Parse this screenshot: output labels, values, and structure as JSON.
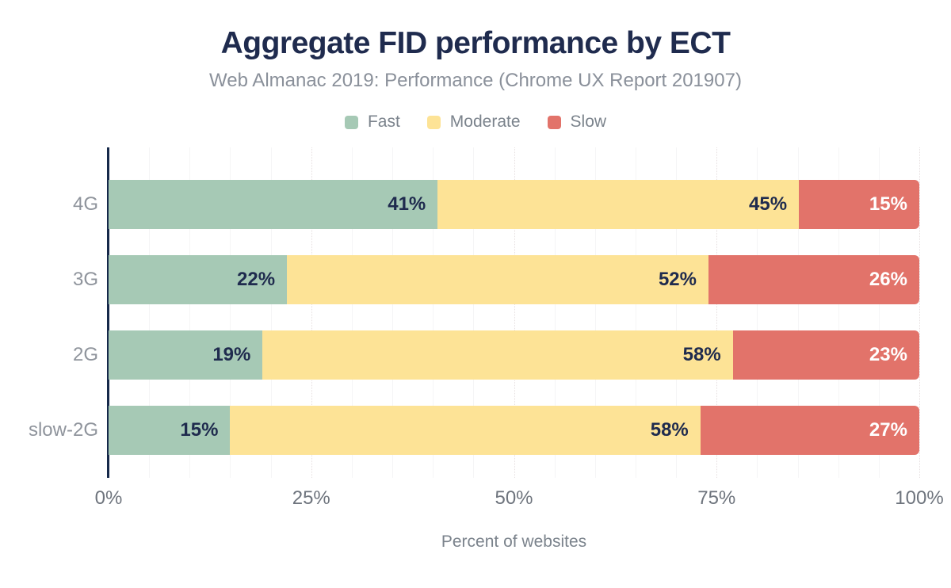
{
  "title": "Aggregate FID performance by ECT",
  "subtitle": "Web Almanac 2019: Performance (Chrome UX Report 201907)",
  "xlabel": "Percent of websites",
  "legend": [
    {
      "label": "Fast",
      "color": "#a6c9b5"
    },
    {
      "label": "Moderate",
      "color": "#fde396"
    },
    {
      "label": "Slow",
      "color": "#e2736a"
    }
  ],
  "colors": {
    "navy": "#1f2b4e",
    "axis": "#16294a",
    "subtitle_gray": "#8a909a",
    "legend_gray": "#7b838c",
    "category_gray": "#8f949c",
    "tick_gray": "#6e747d",
    "grid_minor": "#f5f5f6",
    "grid_major": "#e6dfe0",
    "label_light": "#ffffff"
  },
  "chart_data": {
    "type": "bar",
    "orientation": "horizontal",
    "stacked": true,
    "title": "Aggregate FID performance by ECT",
    "subtitle": "Web Almanac 2019: Performance (Chrome UX Report 201907)",
    "xlabel": "Percent of websites",
    "ylabel": "",
    "categories": [
      "4G",
      "3G",
      "2G",
      "slow-2G"
    ],
    "series": [
      {
        "name": "Fast",
        "color": "#a6c9b5",
        "values": [
          41,
          22,
          19,
          15
        ]
      },
      {
        "name": "Moderate",
        "color": "#fde396",
        "values": [
          45,
          52,
          58,
          58
        ]
      },
      {
        "name": "Slow",
        "color": "#e2736a",
        "values": [
          15,
          26,
          23,
          27
        ]
      }
    ],
    "data_label_format": "{value}%",
    "xlim": [
      0,
      100
    ],
    "x_ticks": [
      {
        "label": "0%",
        "value": 0
      },
      {
        "label": "25%",
        "value": 25
      },
      {
        "label": "50%",
        "value": 50
      },
      {
        "label": "75%",
        "value": 75
      },
      {
        "label": "100%",
        "value": 100
      }
    ],
    "grid": "vertical: dotted major every 25%, faint solid minor every 5%",
    "legend_position": "top"
  }
}
